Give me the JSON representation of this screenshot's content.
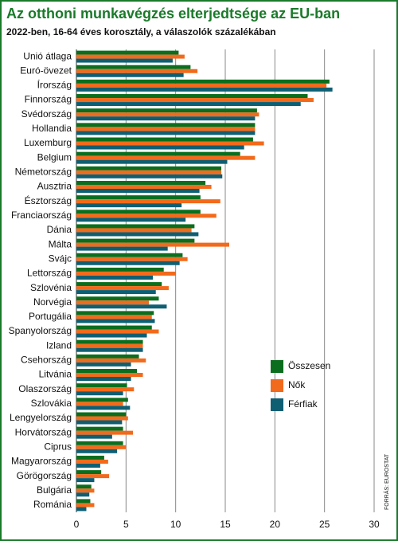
{
  "chart_data": {
    "type": "hbar",
    "title": "Az otthoni munkavégzés elterjedtsége az EU-ban",
    "subtitle": "2022-ben, 16-64 éves korosztály, a válaszolók százalékában",
    "source": "FORRÁS: EUROSTAT",
    "categories": [
      "Unió átlaga",
      "Euró-övezet",
      "Írország",
      "Finnország",
      "Svédország",
      "Hollandia",
      "Luxemburg",
      "Belgium",
      "Németország",
      "Ausztria",
      "Észtország",
      "Franciaország",
      "Dánia",
      "Málta",
      "Svájc",
      "Lettország",
      "Szlovénia",
      "Norvégia",
      "Portugália",
      "Spanyolország",
      "Izland",
      "Csehország",
      "Litvánia",
      "Olaszország",
      "Szlovákia",
      "Lengyelország",
      "Horvátország",
      "Ciprus",
      "Magyarország",
      "Görögország",
      "Bulgária",
      "Románia"
    ],
    "series": [
      {
        "name": "Összesen",
        "color": "#0a6e1e",
        "values": [
          10.3,
          11.5,
          25.5,
          23.3,
          18.2,
          18.0,
          17.8,
          16.5,
          14.6,
          13.0,
          12.5,
          12.5,
          11.9,
          11.9,
          10.7,
          8.8,
          8.6,
          8.3,
          7.8,
          7.6,
          6.7,
          6.3,
          6.1,
          5.1,
          5.2,
          5.0,
          4.7,
          4.7,
          2.8,
          2.5,
          1.5,
          1.4
        ]
      },
      {
        "name": "Nők",
        "color": "#f26a1b",
        "values": [
          10.9,
          12.2,
          25.2,
          23.9,
          18.4,
          18.0,
          18.9,
          18.0,
          14.6,
          13.6,
          14.5,
          14.1,
          11.6,
          15.4,
          11.2,
          10.0,
          9.3,
          7.3,
          7.6,
          8.3,
          6.7,
          7.0,
          6.7,
          5.8,
          4.7,
          5.2,
          5.7,
          5.0,
          3.2,
          3.3,
          1.8,
          1.8
        ]
      },
      {
        "name": "Férfiak",
        "color": "#0f5f73",
        "values": [
          9.7,
          10.8,
          25.8,
          22.6,
          18.0,
          18.0,
          16.9,
          15.2,
          14.7,
          12.4,
          10.6,
          11.0,
          12.3,
          9.2,
          10.4,
          7.7,
          8.0,
          9.1,
          7.9,
          7.1,
          6.7,
          5.5,
          5.5,
          4.7,
          5.4,
          4.6,
          3.6,
          4.1,
          2.4,
          1.8,
          1.3,
          1.0
        ]
      }
    ],
    "xlim": [
      0,
      30
    ],
    "xticks": [
      0,
      5,
      10,
      15,
      20,
      25,
      30
    ],
    "grid": true,
    "legend": "lower right"
  }
}
